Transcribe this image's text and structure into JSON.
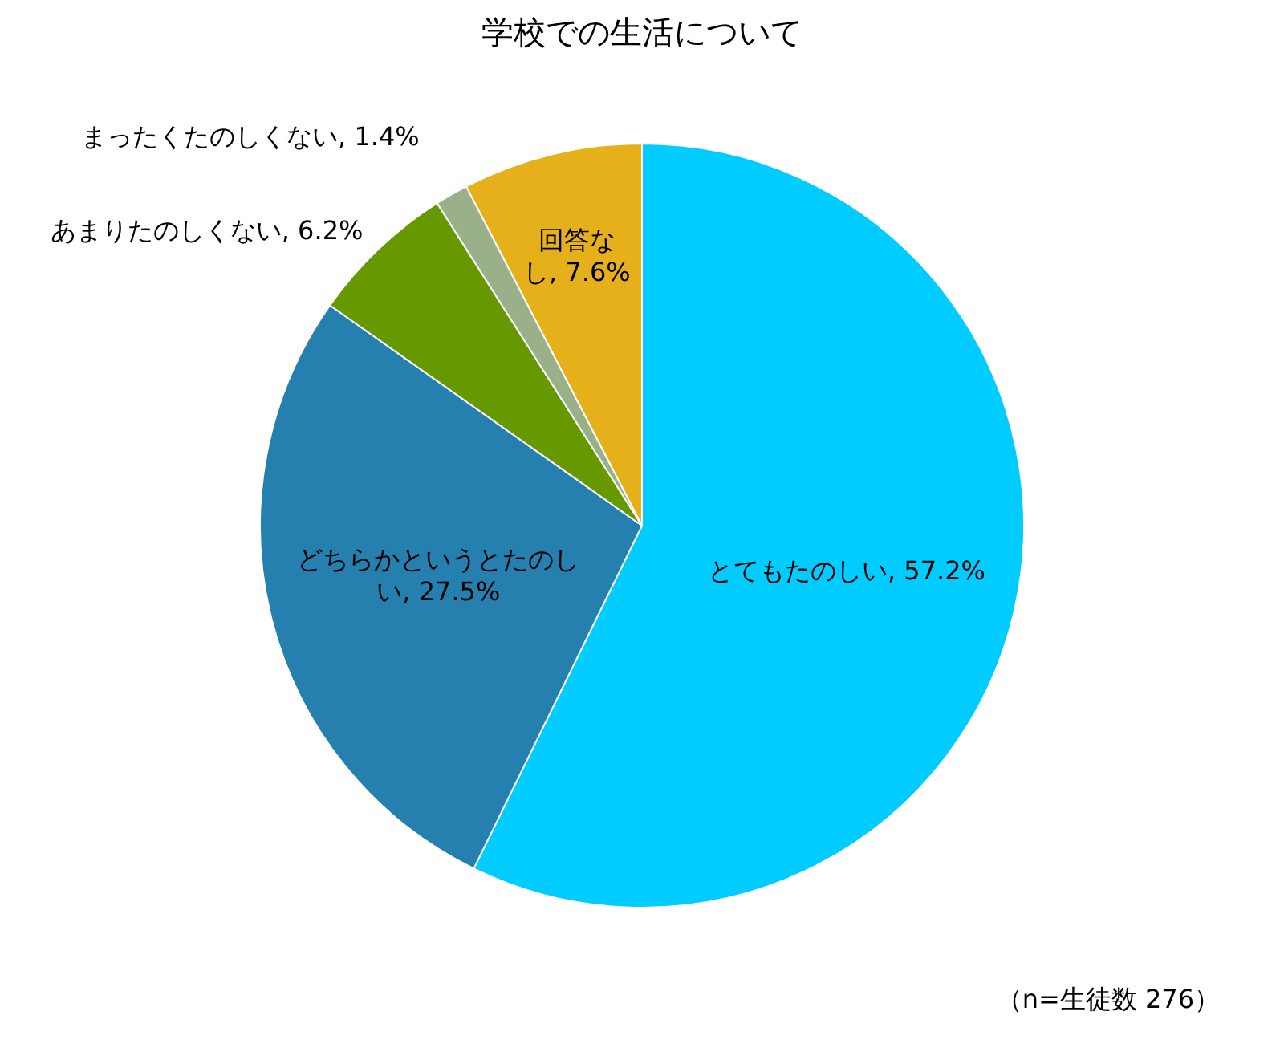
{
  "chart_data": {
    "type": "pie",
    "title": "学校での生活について",
    "categories": [
      "とてもたのしい",
      "どちらかというとたのしい",
      "あまりたのしくない",
      "まったくたのしくない",
      "回答なし"
    ],
    "values": [
      57.2,
      27.5,
      6.2,
      1.4,
      7.6
    ],
    "colors": [
      "#00ccff",
      "#2580b0",
      "#669900",
      "#9ab08a",
      "#e6b01a"
    ],
    "value_labels": [
      "57.2%",
      "27.5%",
      "6.2%",
      "1.4%",
      "7.6%"
    ],
    "legend": false,
    "annotations": [
      "（n=生徒数 276）"
    ]
  }
}
